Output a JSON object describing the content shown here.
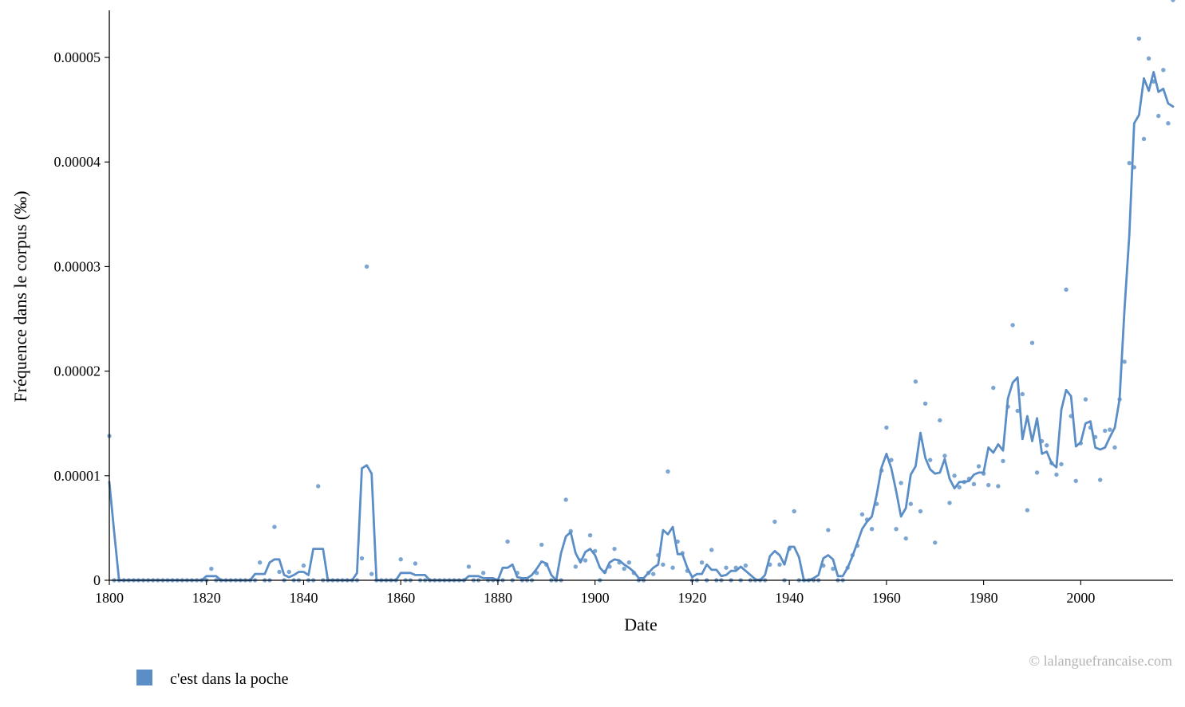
{
  "chart_data": {
    "type": "line",
    "xlabel": "Date",
    "ylabel": "Fréquence dans le corpus (‰)",
    "xlim": [
      1800,
      2019
    ],
    "ylim": [
      0,
      5.45e-05
    ],
    "x_ticks": [
      1800,
      1820,
      1840,
      1860,
      1880,
      1900,
      1920,
      1940,
      1960,
      1980,
      2000
    ],
    "x_tick_labels": [
      "1800",
      "1820",
      "1840",
      "1860",
      "1880",
      "1900",
      "1920",
      "1940",
      "1960",
      "1980",
      "2000"
    ],
    "y_ticks": [
      0,
      1e-05,
      2e-05,
      3e-05,
      4e-05,
      5e-05
    ],
    "y_tick_labels": [
      "0",
      "0.00001",
      "0.00002",
      "0.00003",
      "0.00004",
      "0.00005"
    ],
    "grid": false,
    "legend_position": "bottom-left",
    "series": [
      {
        "name": "c'est dans la poche",
        "color": "#5b8ec6",
        "points_x": [
          1800,
          1801,
          1802,
          1803,
          1804,
          1805,
          1806,
          1807,
          1808,
          1809,
          1810,
          1811,
          1812,
          1813,
          1814,
          1815,
          1816,
          1817,
          1818,
          1819,
          1820,
          1821,
          1822,
          1823,
          1824,
          1825,
          1826,
          1827,
          1828,
          1829,
          1830,
          1831,
          1832,
          1833,
          1834,
          1835,
          1836,
          1837,
          1838,
          1839,
          1840,
          1841,
          1842,
          1843,
          1844,
          1845,
          1846,
          1847,
          1848,
          1849,
          1850,
          1851,
          1852,
          1853,
          1854,
          1855,
          1856,
          1857,
          1858,
          1859,
          1860,
          1861,
          1862,
          1863,
          1864,
          1865,
          1866,
          1867,
          1868,
          1869,
          1870,
          1871,
          1872,
          1873,
          1874,
          1875,
          1876,
          1877,
          1878,
          1879,
          1880,
          1881,
          1882,
          1883,
          1884,
          1885,
          1886,
          1887,
          1888,
          1889,
          1890,
          1891,
          1892,
          1893,
          1894,
          1895,
          1896,
          1897,
          1898,
          1899,
          1900,
          1901,
          1902,
          1903,
          1904,
          1905,
          1906,
          1907,
          1908,
          1909,
          1910,
          1911,
          1912,
          1913,
          1914,
          1915,
          1916,
          1917,
          1918,
          1919,
          1920,
          1921,
          1922,
          1923,
          1924,
          1925,
          1926,
          1927,
          1928,
          1929,
          1930,
          1931,
          1932,
          1933,
          1934,
          1935,
          1936,
          1937,
          1938,
          1939,
          1940,
          1941,
          1942,
          1943,
          1944,
          1945,
          1946,
          1947,
          1948,
          1949,
          1950,
          1951,
          1952,
          1953,
          1954,
          1955,
          1956,
          1957,
          1958,
          1959,
          1960,
          1961,
          1962,
          1963,
          1964,
          1965,
          1966,
          1967,
          1968,
          1969,
          1970,
          1971,
          1972,
          1973,
          1974,
          1975,
          1976,
          1977,
          1978,
          1979,
          1980,
          1981,
          1982,
          1983,
          1984,
          1985,
          1986,
          1987,
          1988,
          1989,
          1990,
          1991,
          1992,
          1993,
          1994,
          1995,
          1996,
          1997,
          1998,
          1999,
          2000,
          2001,
          2002,
          2003,
          2004,
          2005,
          2006,
          2007,
          2008,
          2009,
          2010,
          2011,
          2012,
          2013,
          2014,
          2015,
          2016,
          2017,
          2018,
          2019
        ],
        "points_y": [
          1.38e-05,
          0,
          0,
          0,
          0,
          0,
          0,
          0,
          0,
          0,
          0,
          0,
          0,
          0,
          0,
          0,
          0,
          0,
          0,
          0,
          0,
          1.1e-06,
          0,
          0,
          0,
          0,
          0,
          0,
          0,
          0,
          0,
          1.7e-06,
          0,
          0,
          5.1e-06,
          8e-07,
          0,
          8e-07,
          0,
          0,
          1.4e-06,
          0,
          0,
          9e-06,
          0,
          0,
          0,
          0,
          0,
          0,
          0,
          0,
          2.1e-06,
          3e-05,
          6e-07,
          0,
          0,
          0,
          0,
          0,
          2e-06,
          0,
          0,
          1.6e-06,
          0,
          0,
          0,
          0,
          0,
          0,
          0,
          0,
          0,
          0,
          1.3e-06,
          0,
          0,
          7e-07,
          0,
          0,
          0,
          0,
          3.7e-06,
          0,
          7e-07,
          0,
          0,
          0,
          7e-07,
          3.4e-06,
          1.5e-06,
          0,
          0,
          0,
          7.7e-06,
          4.7e-06,
          1.3e-06,
          1.9e-06,
          1.9e-06,
          4.3e-06,
          2.8e-06,
          0,
          8e-07,
          1.3e-06,
          3e-06,
          1.7e-06,
          1.1e-06,
          1.7e-06,
          7e-07,
          0,
          0,
          7e-07,
          6e-07,
          2.4e-06,
          1.5e-06,
          1.04e-05,
          1.2e-06,
          3.7e-06,
          2.6e-06,
          9e-07,
          0,
          0,
          1.7e-06,
          0,
          2.9e-06,
          0,
          0,
          1.2e-06,
          0,
          1.2e-06,
          0,
          1.4e-06,
          0,
          0,
          0,
          0,
          1.5e-06,
          5.6e-06,
          1.5e-06,
          0,
          3e-06,
          6.6e-06,
          0,
          0,
          0,
          0,
          0,
          1.4e-06,
          4.8e-06,
          1.1e-06,
          0,
          0,
          1.2e-06,
          2.4e-06,
          3.3e-06,
          6.3e-06,
          5.8e-06,
          4.9e-06,
          7.3e-06,
          1.05e-05,
          1.46e-05,
          1.15e-05,
          4.9e-06,
          9.3e-06,
          4e-06,
          7.3e-06,
          1.9e-05,
          6.6e-06,
          1.69e-05,
          1.15e-05,
          3.6e-06,
          1.53e-05,
          1.19e-05,
          7.4e-06,
          1e-05,
          8.9e-06,
          9.4e-06,
          9.7e-06,
          9.2e-06,
          1.09e-05,
          1.02e-05,
          9.1e-06,
          1.84e-05,
          9e-06,
          1.14e-05,
          1.66e-05,
          2.44e-05,
          1.62e-05,
          1.78e-05,
          6.7e-06,
          2.27e-05,
          1.03e-05,
          1.33e-05,
          1.29e-05,
          1.12e-05,
          1.01e-05,
          1.11e-05,
          2.78e-05,
          1.57e-05,
          9.5e-06,
          1.31e-05,
          1.73e-05,
          1.46e-05,
          1.37e-05,
          9.6e-06,
          1.43e-05,
          1.44e-05,
          1.27e-05,
          1.73e-05,
          2.09e-05,
          3.99e-05,
          3.95e-05,
          5.18e-05,
          4.22e-05,
          4.99e-05,
          4.77e-05,
          4.44e-05,
          4.88e-05,
          4.37e-05
        ],
        "smooth_x": [
          1800,
          1801,
          1802,
          1803,
          1804,
          1805,
          1806,
          1807,
          1808,
          1809,
          1810,
          1811,
          1812,
          1813,
          1814,
          1815,
          1816,
          1817,
          1818,
          1819,
          1820,
          1821,
          1822,
          1823,
          1824,
          1825,
          1826,
          1827,
          1828,
          1829,
          1830,
          1831,
          1832,
          1833,
          1834,
          1835,
          1836,
          1837,
          1838,
          1839,
          1840,
          1841,
          1842,
          1843,
          1844,
          1845,
          1846,
          1847,
          1848,
          1849,
          1850,
          1851,
          1852,
          1853,
          1854,
          1855,
          1856,
          1857,
          1858,
          1859,
          1860,
          1861,
          1862,
          1863,
          1864,
          1865,
          1866,
          1867,
          1868,
          1869,
          1870,
          1871,
          1872,
          1873,
          1874,
          1875,
          1876,
          1877,
          1878,
          1879,
          1880,
          1881,
          1882,
          1883,
          1884,
          1885,
          1886,
          1887,
          1888,
          1889,
          1890,
          1891,
          1892,
          1893,
          1894,
          1895,
          1896,
          1897,
          1898,
          1899,
          1900,
          1901,
          1902,
          1903,
          1904,
          1905,
          1906,
          1907,
          1908,
          1909,
          1910,
          1911,
          1912,
          1913,
          1914,
          1915,
          1916,
          1917,
          1918,
          1919,
          1920,
          1921,
          1922,
          1923,
          1924,
          1925,
          1926,
          1927,
          1928,
          1929,
          1930,
          1931,
          1932,
          1933,
          1934,
          1935,
          1936,
          1937,
          1938,
          1939,
          1940,
          1941,
          1942,
          1943,
          1944,
          1945,
          1946,
          1947,
          1948,
          1949,
          1950,
          1951,
          1952,
          1953,
          1954,
          1955,
          1956,
          1957,
          1958,
          1959,
          1960,
          1961,
          1962,
          1963,
          1964,
          1965,
          1966,
          1967,
          1968,
          1969,
          1970,
          1971,
          1972,
          1973,
          1974,
          1975,
          1976,
          1977,
          1978,
          1979,
          1980,
          1981,
          1982,
          1983,
          1984,
          1985,
          1986,
          1987,
          1988,
          1989,
          1990,
          1991,
          1992,
          1993,
          1994,
          1995,
          1996,
          1997,
          1998,
          1999,
          2000,
          2001,
          2002,
          2003,
          2004,
          2005,
          2006,
          2007,
          2008,
          2009,
          2010,
          2011,
          2012,
          2013,
          2014,
          2015,
          2016,
          2017,
          2018,
          2019
        ],
        "smooth_y": [
          9.4e-06,
          4.6e-06,
          0,
          0,
          0,
          0,
          0,
          0,
          0,
          0,
          0,
          0,
          0,
          0,
          0,
          0,
          0,
          0,
          0,
          0,
          4e-07,
          4e-07,
          4e-07,
          0,
          0,
          0,
          0,
          0,
          0,
          0,
          6e-07,
          6e-07,
          6e-07,
          1.7e-06,
          2e-06,
          2e-06,
          5e-07,
          3e-07,
          5e-07,
          8e-07,
          8e-07,
          5e-07,
          3e-06,
          3e-06,
          3e-06,
          0,
          0,
          0,
          0,
          0,
          0,
          7e-07,
          1.07e-05,
          1.1e-05,
          1.02e-05,
          0,
          0,
          0,
          0,
          0,
          7e-07,
          7e-07,
          7e-07,
          5e-07,
          5e-07,
          5e-07,
          0,
          0,
          0,
          0,
          0,
          0,
          0,
          0,
          4e-07,
          4e-07,
          4e-07,
          2e-07,
          2e-07,
          2e-07,
          0,
          1.2e-06,
          1.2e-06,
          1.5e-06,
          3e-07,
          2e-07,
          2e-07,
          5e-07,
          1.1e-06,
          1.8e-06,
          1.6e-06,
          5e-07,
          0,
          2.6e-06,
          4.2e-06,
          4.6e-06,
          2.6e-06,
          1.7e-06,
          2.7e-06,
          3e-06,
          2.4e-06,
          1.2e-06,
          7e-07,
          1.7e-06,
          2e-06,
          1.9e-06,
          1.5e-06,
          1.2e-06,
          8e-07,
          2e-07,
          2e-07,
          7e-07,
          1.2e-06,
          1.5e-06,
          4.8e-06,
          4.4e-06,
          5.1e-06,
          2.5e-06,
          2.5e-06,
          1.2e-06,
          3e-07,
          6e-07,
          6e-07,
          1.5e-06,
          1e-06,
          1e-06,
          4e-07,
          5e-07,
          9e-07,
          9e-07,
          1.3e-06,
          9e-07,
          5e-07,
          1e-07,
          0,
          5e-07,
          2.3e-06,
          2.8e-06,
          2.4e-06,
          1.5e-06,
          3.2e-06,
          3.2e-06,
          2.2e-06,
          0,
          0,
          2e-07,
          5e-07,
          2.1e-06,
          2.4e-06,
          2e-06,
          4e-07,
          4e-07,
          1.2e-06,
          2.3e-06,
          3.6e-06,
          4.9e-06,
          5.6e-06,
          6.1e-06,
          8.2e-06,
          1.08e-05,
          1.21e-05,
          1.07e-05,
          8.5e-06,
          6.1e-06,
          6.9e-06,
          1.01e-05,
          1.09e-05,
          1.41e-05,
          1.17e-05,
          1.06e-05,
          1.02e-05,
          1.03e-05,
          1.16e-05,
          9.7e-06,
          8.8e-06,
          9.4e-06,
          9.4e-06,
          9.5e-06,
          1.01e-05,
          1.03e-05,
          1.03e-05,
          1.27e-05,
          1.22e-05,
          1.3e-05,
          1.24e-05,
          1.74e-05,
          1.89e-05,
          1.94e-05,
          1.35e-05,
          1.57e-05,
          1.33e-05,
          1.55e-05,
          1.21e-05,
          1.23e-05,
          1.12e-05,
          1.08e-05,
          1.63e-05,
          1.82e-05,
          1.76e-05,
          1.28e-05,
          1.32e-05,
          1.5e-05,
          1.52e-05,
          1.27e-05,
          1.25e-05,
          1.27e-05,
          1.37e-05,
          1.46e-05,
          1.73e-05,
          2.58e-05,
          3.3e-05,
          4.37e-05,
          4.45e-05,
          4.8e-05,
          4.68e-05,
          4.86e-05,
          4.67e-05,
          4.7e-05,
          4.56e-05,
          4.53e-05
        ]
      }
    ],
    "legend": [
      {
        "label": "c'est dans la poche",
        "color": "#5b8ec6"
      }
    ]
  },
  "credit": "© lalanguefrancaise.com"
}
